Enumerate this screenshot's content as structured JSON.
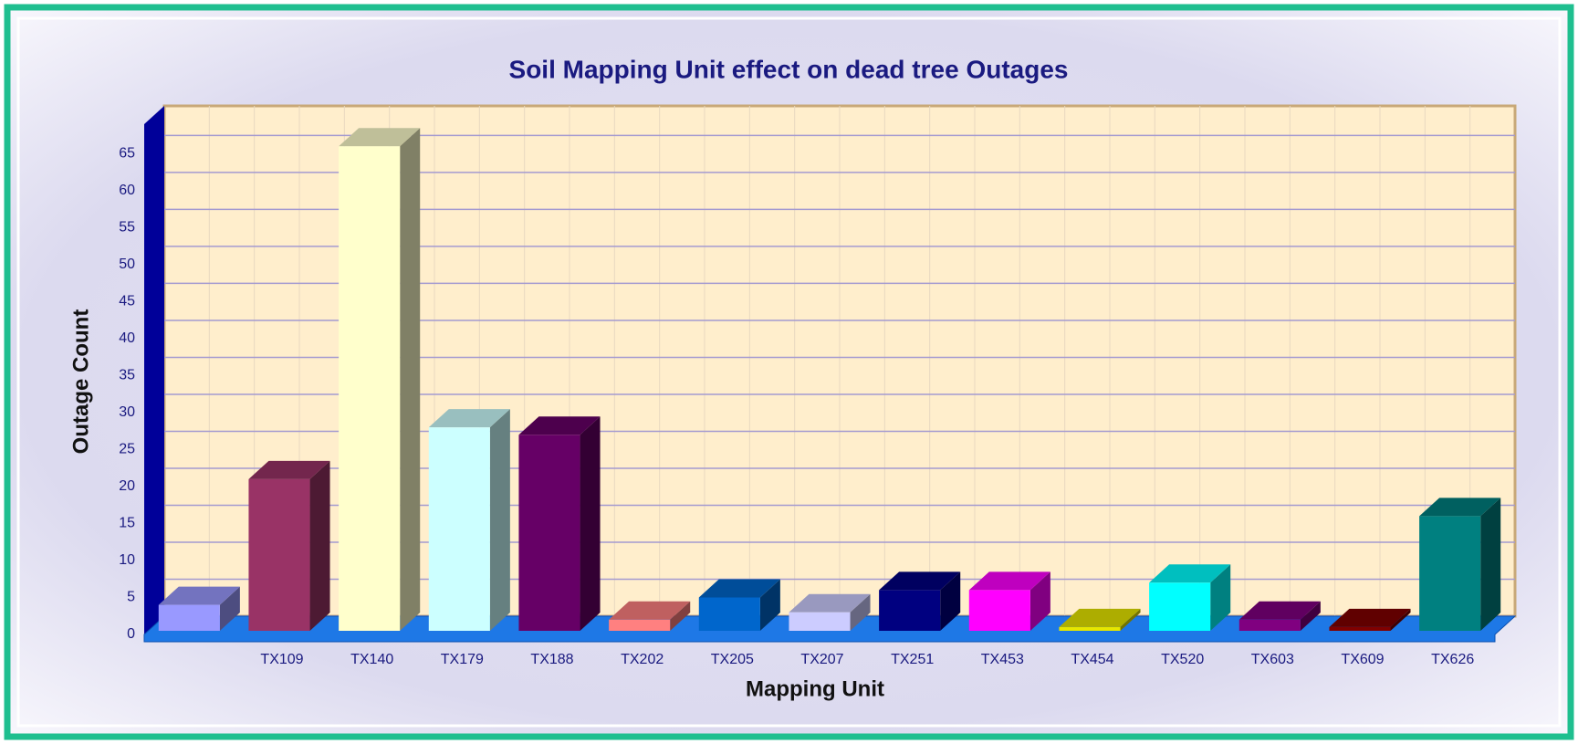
{
  "chart_data": {
    "type": "bar3d",
    "title": "Soil Mapping Unit effect on dead tree Outages",
    "x_label": "Mapping Unit",
    "y_label": "Outage Count",
    "categories": [
      null,
      "TX109",
      "TX140",
      "TX179",
      "TX188",
      "TX202",
      "TX205",
      "TX207",
      "TX251",
      "TX453",
      "TX454",
      "TX520",
      "TX603",
      "TX609",
      "TX626"
    ],
    "values": [
      4,
      21,
      66,
      28,
      27,
      2,
      5,
      3,
      6,
      6,
      1,
      7,
      2,
      1,
      16
    ],
    "colors": [
      "#9999ff",
      "#993366",
      "#ffffcc",
      "#ccffff",
      "#660066",
      "#ff8080",
      "#0066cc",
      "#ccccff",
      "#000080",
      "#ff00ff",
      "#e6e600",
      "#00ffff",
      "#800080",
      "#800000",
      "#008080"
    ],
    "ylim": [
      0,
      69
    ],
    "yticks": [
      0,
      5,
      10,
      15,
      20,
      25,
      30,
      35,
      40,
      45,
      50,
      55,
      60,
      65
    ],
    "grid": true
  }
}
